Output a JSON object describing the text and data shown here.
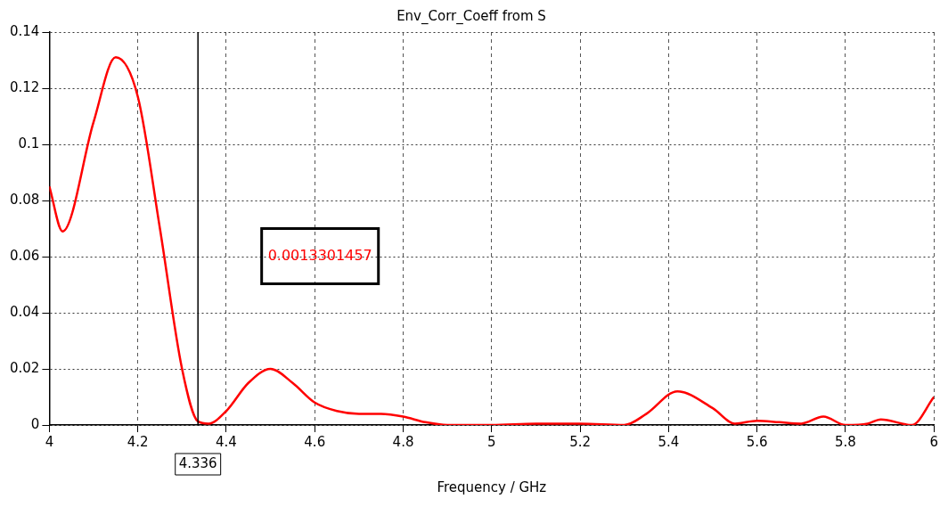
{
  "chart_data": {
    "type": "line",
    "title": "Env_Corr_Coeff from S",
    "xlabel": "Frequency / GHz",
    "x": [
      4.0,
      4.03,
      4.1,
      4.15,
      4.2,
      4.25,
      4.3,
      4.336,
      4.36,
      4.4,
      4.45,
      4.5,
      4.55,
      4.6,
      4.65,
      4.7,
      4.75,
      4.8,
      4.85,
      4.9,
      5.0,
      5.1,
      5.2,
      5.3,
      5.35,
      5.42,
      5.5,
      5.55,
      5.6,
      5.65,
      5.7,
      5.75,
      5.8,
      5.85,
      5.88,
      5.95,
      6.0
    ],
    "series": [
      {
        "color": "#ff0000",
        "values": [
          0.085,
          0.069,
          0.108,
          0.131,
          0.117,
          0.07,
          0.02,
          0.0013,
          0.0005,
          0.005,
          0.015,
          0.02,
          0.015,
          0.008,
          0.005,
          0.004,
          0.004,
          0.003,
          0.001,
          0.0,
          0.0,
          0.0005,
          0.0005,
          0.0,
          0.004,
          0.012,
          0.006,
          0.0005,
          0.0015,
          0.001,
          0.0005,
          0.003,
          0.0,
          0.0005,
          0.002,
          0.0,
          0.01
        ]
      }
    ],
    "xlim": [
      4,
      6
    ],
    "xticks": [
      4,
      4.2,
      4.4,
      4.6,
      4.8,
      5,
      5.2,
      5.4,
      5.6,
      5.8,
      6
    ],
    "ylim": [
      0,
      0.14
    ],
    "yticks": [
      0,
      0.02,
      0.04,
      0.06,
      0.08,
      0.1,
      0.12,
      0.14
    ],
    "grid": true,
    "legend": false,
    "marker": "none",
    "line_style": "solid",
    "ref_lines": [
      {
        "axis": "x",
        "value": 4.336,
        "label": "4.336"
      }
    ],
    "annotations": [
      "0.0013301457"
    ]
  }
}
